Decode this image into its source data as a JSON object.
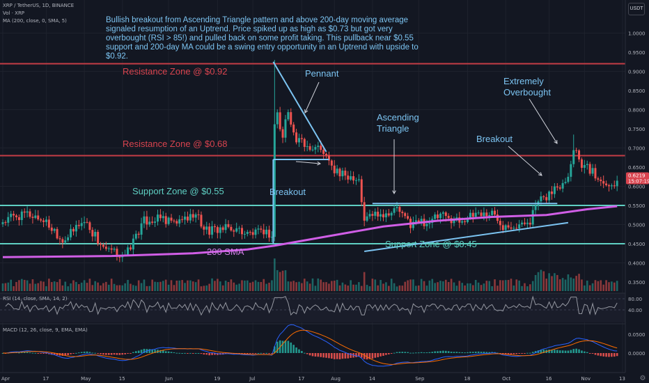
{
  "header": {
    "symbol_line": "XRP / TetherUS, 1D, BINANCE",
    "volume_line": "Vol · XRP",
    "ma_line": "MA (200, close, 0, SMA, 5)",
    "currency_button": "USDT"
  },
  "annotation": "Bullish breakout from Ascending Triangle pattern and above 200-day moving average signaled resumption of an Uptrend. Price spiked up as high as $0.73 but got very overbought (RSI > 85!) and pulled back on some profit taking. This pullback near $0.55 support and 200-day MA could be a swing entry opportunity in an Uptrend with upside to $0.92.",
  "labels": {
    "resistance_092": "Resistance Zone @ $0.92",
    "resistance_068": "Resistance Zone @ $0.68",
    "support_055": "Support Zone @ $0.55",
    "support_045": "Support Zone @ $0.45",
    "pennant": "Pennant",
    "breakout_left": "Breakout",
    "ascending_triangle_1": "Ascending",
    "ascending_triangle_2": "Triangle",
    "breakout_right": "Breakout",
    "extremely_1": "Extremely",
    "extremely_2": "Overbought",
    "sma200": "200 SMA"
  },
  "price_badge": {
    "price": "0.6219",
    "countdown": "15:07:19"
  },
  "rsi": {
    "label": "RSI (14, close, SMA, 14, 2)",
    "ticks": [
      "80.00",
      "40.00"
    ]
  },
  "macd": {
    "label": "MACD (12, 26, close, 9, EMA, EMA)",
    "ticks": [
      "0.0500",
      "0.0000"
    ]
  },
  "colors": {
    "background": "#131722",
    "up": "#26a69a",
    "down": "#ef5350",
    "resistance": "#c43c45",
    "support": "#5fd0c3",
    "sma": "#d05ee6",
    "annotation": "#7cc4f2"
  },
  "chart_data": {
    "type": "candlestick",
    "title": "XRP / TetherUS, 1D, BINANCE",
    "x_tick_labels": [
      "Apr",
      "17",
      "May",
      "15",
      "Jun",
      "19",
      "Jul",
      "17",
      "Aug",
      "14",
      "Sep",
      "18",
      "Oct",
      "16",
      "Nov",
      "13"
    ],
    "y_tick_labels": [
      "1.0000",
      "0.9500",
      "0.9000",
      "0.8500",
      "0.8000",
      "0.7500",
      "0.7000",
      "0.6500",
      "0.6000",
      "0.5500",
      "0.5000",
      "0.4500",
      "0.4000",
      "0.3500"
    ],
    "ylim": [
      0.345,
      1.045
    ],
    "log_scale": false,
    "horizontal_levels": [
      {
        "name": "Resistance Zone @ $0.92",
        "value": 0.92
      },
      {
        "name": "Resistance Zone @ $0.68",
        "value": 0.68
      },
      {
        "name": "Support Zone @ $0.55",
        "value": 0.55
      },
      {
        "name": "Support Zone @ $0.45",
        "value": 0.45
      }
    ],
    "close_anchors": [
      {
        "day": 0,
        "close": 0.51
      },
      {
        "day": 8,
        "close": 0.53
      },
      {
        "day": 16,
        "close": 0.51
      },
      {
        "day": 22,
        "close": 0.46
      },
      {
        "day": 30,
        "close": 0.51
      },
      {
        "day": 38,
        "close": 0.43
      },
      {
        "day": 45,
        "close": 0.42
      },
      {
        "day": 52,
        "close": 0.51
      },
      {
        "day": 58,
        "close": 0.52
      },
      {
        "day": 64,
        "close": 0.5
      },
      {
        "day": 70,
        "close": 0.53
      },
      {
        "day": 76,
        "close": 0.48
      },
      {
        "day": 82,
        "close": 0.49
      },
      {
        "day": 90,
        "close": 0.48
      },
      {
        "day": 96,
        "close": 0.48
      },
      {
        "day": 99,
        "close": 0.47
      },
      {
        "day": 100,
        "close": 0.76
      },
      {
        "day": 101,
        "close": 0.79
      },
      {
        "day": 103,
        "close": 0.72
      },
      {
        "day": 105,
        "close": 0.81
      },
      {
        "day": 107,
        "close": 0.73
      },
      {
        "day": 110,
        "close": 0.71
      },
      {
        "day": 114,
        "close": 0.7
      },
      {
        "day": 118,
        "close": 0.69
      },
      {
        "day": 121,
        "close": 0.65
      },
      {
        "day": 125,
        "close": 0.63
      },
      {
        "day": 128,
        "close": 0.63
      },
      {
        "day": 131,
        "close": 0.62
      },
      {
        "day": 133,
        "close": 0.51
      },
      {
        "day": 136,
        "close": 0.53
      },
      {
        "day": 140,
        "close": 0.53
      },
      {
        "day": 145,
        "close": 0.54
      },
      {
        "day": 150,
        "close": 0.5
      },
      {
        "day": 156,
        "close": 0.51
      },
      {
        "day": 162,
        "close": 0.52
      },
      {
        "day": 168,
        "close": 0.51
      },
      {
        "day": 174,
        "close": 0.53
      },
      {
        "day": 180,
        "close": 0.53
      },
      {
        "day": 184,
        "close": 0.5
      },
      {
        "day": 190,
        "close": 0.5
      },
      {
        "day": 194,
        "close": 0.51
      },
      {
        "day": 196,
        "close": 0.55
      },
      {
        "day": 200,
        "close": 0.57
      },
      {
        "day": 204,
        "close": 0.6
      },
      {
        "day": 208,
        "close": 0.63
      },
      {
        "day": 210,
        "close": 0.71
      },
      {
        "day": 212,
        "close": 0.67
      },
      {
        "day": 216,
        "close": 0.64
      },
      {
        "day": 220,
        "close": 0.62
      },
      {
        "day": 224,
        "close": 0.6
      },
      {
        "day": 226,
        "close": 0.62
      }
    ],
    "series": [
      {
        "name": "MA (200, close, 0, SMA, 5)",
        "points": [
          [
            0,
            0.415
          ],
          [
            40,
            0.418
          ],
          [
            70,
            0.425
          ],
          [
            90,
            0.435
          ],
          [
            100,
            0.445
          ],
          [
            120,
            0.47
          ],
          [
            140,
            0.495
          ],
          [
            160,
            0.51
          ],
          [
            180,
            0.52
          ],
          [
            200,
            0.525
          ],
          [
            215,
            0.54
          ],
          [
            226,
            0.548
          ]
        ]
      }
    ],
    "rsi_range": [
      0,
      100
    ],
    "macd_range": [
      -0.03,
      0.08
    ]
  }
}
